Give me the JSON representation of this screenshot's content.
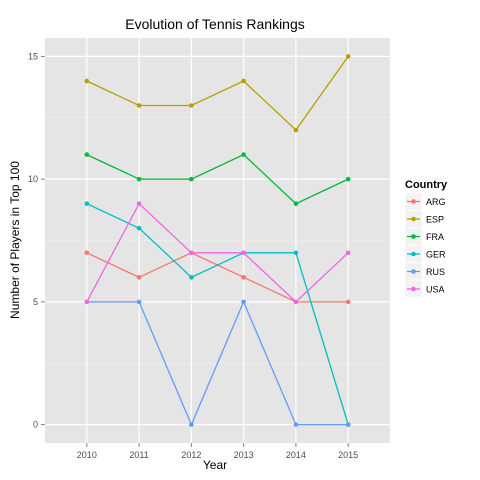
{
  "chart_data": {
    "type": "line",
    "title": "Evolution of Tennis Rankings",
    "xlabel": "Year",
    "ylabel": "Number of Players in Top 100",
    "x": [
      "2010",
      "2011",
      "2012",
      "2013",
      "2014",
      "2015"
    ],
    "y_ticks": [
      "0",
      "5",
      "10",
      "15"
    ],
    "ylim": [
      -0.75,
      15.75
    ],
    "grid": true,
    "legend_title": "Country",
    "legend_position": "right",
    "series": [
      {
        "name": "ARG",
        "color": "#F8766D",
        "values": [
          7,
          6,
          7,
          6,
          5,
          5
        ]
      },
      {
        "name": "ESP",
        "color": "#B79F00",
        "values": [
          14,
          13,
          13,
          14,
          12,
          15
        ]
      },
      {
        "name": "FRA",
        "color": "#00BA38",
        "values": [
          11,
          10,
          10,
          11,
          9,
          10
        ]
      },
      {
        "name": "GER",
        "color": "#00BFC4",
        "values": [
          9,
          8,
          6,
          7,
          7,
          0
        ]
      },
      {
        "name": "RUS",
        "color": "#619CFF",
        "values": [
          5,
          5,
          0,
          5,
          0,
          0
        ]
      },
      {
        "name": "USA",
        "color": "#F564E3",
        "values": [
          5,
          9,
          7,
          7,
          5,
          7
        ]
      }
    ]
  }
}
